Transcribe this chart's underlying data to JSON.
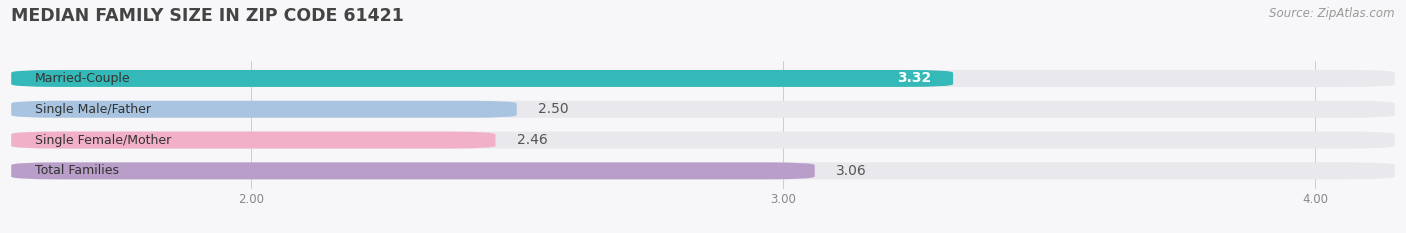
{
  "title": "MEDIAN FAMILY SIZE IN ZIP CODE 61421",
  "source": "Source: ZipAtlas.com",
  "categories": [
    "Married-Couple",
    "Single Male/Father",
    "Single Female/Mother",
    "Total Families"
  ],
  "values": [
    3.32,
    2.5,
    2.46,
    3.06
  ],
  "bar_colors": [
    "#35b8b8",
    "#a8c4e0",
    "#f2b0c8",
    "#b89ec8"
  ],
  "bar_bg_color": "#e8e8ed",
  "label_colors": [
    "#ffffff",
    "#666666",
    "#666666",
    "#666666"
  ],
  "xlim_left": 1.55,
  "xlim_right": 4.15,
  "xticks": [
    2.0,
    3.0,
    4.0
  ],
  "xtick_labels": [
    "2.00",
    "3.00",
    "4.00"
  ],
  "background_color": "#f7f7f9",
  "title_fontsize": 12.5,
  "title_color": "#444444",
  "bar_height": 0.55,
  "bar_label_fontsize": 10,
  "category_fontsize": 9,
  "source_fontsize": 8.5,
  "source_color": "#999999",
  "rounding_size": 0.09
}
